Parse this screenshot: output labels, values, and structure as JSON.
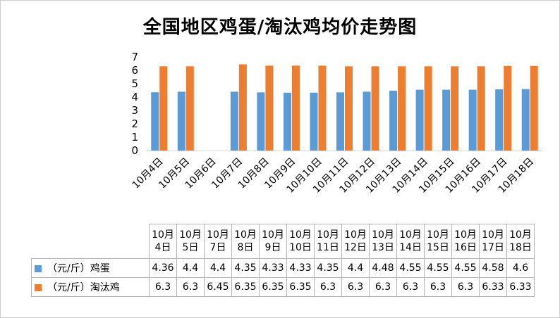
{
  "title": "全国地区鸡蛋/淘汰鸡均价走势图",
  "colors": {
    "egg": "#5B9BD5",
    "hen": "#ED7D31"
  },
  "chart_data": {
    "type": "bar",
    "title": "全国地区鸡蛋/淘汰鸡均价走势图",
    "xlabel": "",
    "ylabel": "",
    "ylim": [
      0,
      7
    ],
    "yticks": [
      0,
      1,
      2,
      3,
      4,
      5,
      6,
      7
    ],
    "categories": [
      "10月4日",
      "10月5日",
      "10月6日",
      "10月7日",
      "10月8日",
      "10月9日",
      "10月10日",
      "10月11日",
      "10月12日",
      "10月13日",
      "10月14日",
      "10月15日",
      "10月16日",
      "10月17日",
      "10月18日"
    ],
    "series": [
      {
        "name": "（元/斤）鸡蛋",
        "color": "#5B9BD5",
        "values": [
          4.36,
          4.4,
          null,
          4.4,
          4.35,
          4.33,
          4.33,
          4.35,
          4.4,
          4.48,
          4.55,
          4.55,
          4.55,
          4.58,
          4.6
        ]
      },
      {
        "name": "（元/斤）淘汰鸡",
        "color": "#ED7D31",
        "values": [
          6.3,
          6.3,
          null,
          6.45,
          6.35,
          6.35,
          6.35,
          6.3,
          6.3,
          6.3,
          6.3,
          6.3,
          6.3,
          6.33,
          6.33
        ]
      }
    ],
    "grid": false,
    "legend": "data-table"
  },
  "table": {
    "headers": [
      [
        "10月",
        "4日"
      ],
      [
        "10月",
        "5日"
      ],
      [
        "10月",
        "7日"
      ],
      [
        "10月",
        "8日"
      ],
      [
        "10月",
        "9日"
      ],
      [
        "10月",
        "10日"
      ],
      [
        "10月",
        "11日"
      ],
      [
        "10月",
        "12日"
      ],
      [
        "10月",
        "13日"
      ],
      [
        "10月",
        "14日"
      ],
      [
        "10月",
        "15日"
      ],
      [
        "10月",
        "16日"
      ],
      [
        "10月",
        "17日"
      ],
      [
        "10月",
        "18日"
      ]
    ],
    "rows": [
      {
        "label": "（元/斤）鸡蛋",
        "color": "#5B9BD5",
        "values": [
          "4.36",
          "4.4",
          "4.4",
          "4.35",
          "4.33",
          "4.33",
          "4.35",
          "4.4",
          "4.48",
          "4.55",
          "4.55",
          "4.55",
          "4.58",
          "4.6"
        ]
      },
      {
        "label": "（元/斤）淘汰鸡",
        "color": "#ED7D31",
        "values": [
          "6.3",
          "6.3",
          "6.45",
          "6.35",
          "6.35",
          "6.35",
          "6.3",
          "6.3",
          "6.3",
          "6.3",
          "6.3",
          "6.3",
          "6.33",
          "6.33"
        ]
      }
    ]
  }
}
